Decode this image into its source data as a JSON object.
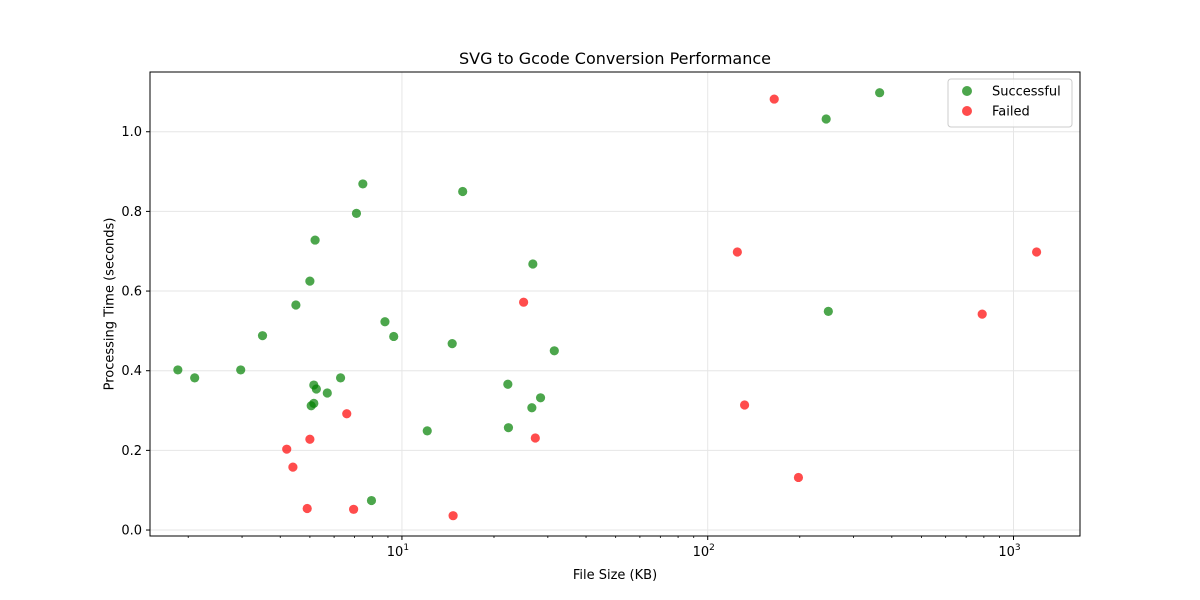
{
  "chart_data": {
    "type": "scatter",
    "title": "SVG to Gcode Conversion Performance",
    "xlabel": "File Size (KB)",
    "ylabel": "Processing Time (seconds)",
    "xscale": "log",
    "xlim": [
      1.5,
      1650
    ],
    "ylim": [
      -0.015,
      1.15
    ],
    "xticks": [
      {
        "value": 10,
        "base": "10",
        "exp": "1"
      },
      {
        "value": 100,
        "base": "10",
        "exp": "2"
      },
      {
        "value": 1000,
        "base": "10",
        "exp": "3"
      }
    ],
    "yticks": [
      {
        "value": 0.0,
        "label": "0.0"
      },
      {
        "value": 0.2,
        "label": "0.2"
      },
      {
        "value": 0.4,
        "label": "0.4"
      },
      {
        "value": 0.6,
        "label": "0.6"
      },
      {
        "value": 0.8,
        "label": "0.8"
      },
      {
        "value": 1.0,
        "label": "1.0"
      }
    ],
    "grid": true,
    "legend_position": "top-right",
    "series": [
      {
        "name": "Successful",
        "color": "#008000",
        "points": [
          {
            "x": 1.85,
            "y": 0.402
          },
          {
            "x": 2.1,
            "y": 0.382
          },
          {
            "x": 2.97,
            "y": 0.402
          },
          {
            "x": 3.5,
            "y": 0.488
          },
          {
            "x": 4.5,
            "y": 0.565
          },
          {
            "x": 5.0,
            "y": 0.625
          },
          {
            "x": 5.2,
            "y": 0.728
          },
          {
            "x": 5.05,
            "y": 0.312
          },
          {
            "x": 5.15,
            "y": 0.318
          },
          {
            "x": 5.15,
            "y": 0.364
          },
          {
            "x": 5.25,
            "y": 0.354
          },
          {
            "x": 5.7,
            "y": 0.344
          },
          {
            "x": 6.3,
            "y": 0.382
          },
          {
            "x": 7.1,
            "y": 0.795
          },
          {
            "x": 7.45,
            "y": 0.869
          },
          {
            "x": 7.95,
            "y": 0.074
          },
          {
            "x": 8.8,
            "y": 0.523
          },
          {
            "x": 9.4,
            "y": 0.486
          },
          {
            "x": 12.1,
            "y": 0.249
          },
          {
            "x": 14.6,
            "y": 0.468
          },
          {
            "x": 15.8,
            "y": 0.85
          },
          {
            "x": 22.2,
            "y": 0.366
          },
          {
            "x": 22.3,
            "y": 0.257
          },
          {
            "x": 26.6,
            "y": 0.307
          },
          {
            "x": 26.8,
            "y": 0.668
          },
          {
            "x": 28.4,
            "y": 0.332
          },
          {
            "x": 31.5,
            "y": 0.45
          },
          {
            "x": 244,
            "y": 1.032
          },
          {
            "x": 248,
            "y": 0.549
          },
          {
            "x": 365,
            "y": 1.098
          }
        ]
      },
      {
        "name": "Failed",
        "color": "#ff0000",
        "points": [
          {
            "x": 4.2,
            "y": 0.203
          },
          {
            "x": 4.4,
            "y": 0.158
          },
          {
            "x": 4.9,
            "y": 0.054
          },
          {
            "x": 5.0,
            "y": 0.228
          },
          {
            "x": 6.6,
            "y": 0.292
          },
          {
            "x": 6.95,
            "y": 0.052
          },
          {
            "x": 14.7,
            "y": 0.036
          },
          {
            "x": 25.0,
            "y": 0.572
          },
          {
            "x": 27.3,
            "y": 0.231
          },
          {
            "x": 125,
            "y": 0.698
          },
          {
            "x": 132,
            "y": 0.314
          },
          {
            "x": 165,
            "y": 1.082
          },
          {
            "x": 198,
            "y": 0.132
          },
          {
            "x": 790,
            "y": 0.542
          },
          {
            "x": 1190,
            "y": 0.698
          }
        ]
      }
    ]
  }
}
